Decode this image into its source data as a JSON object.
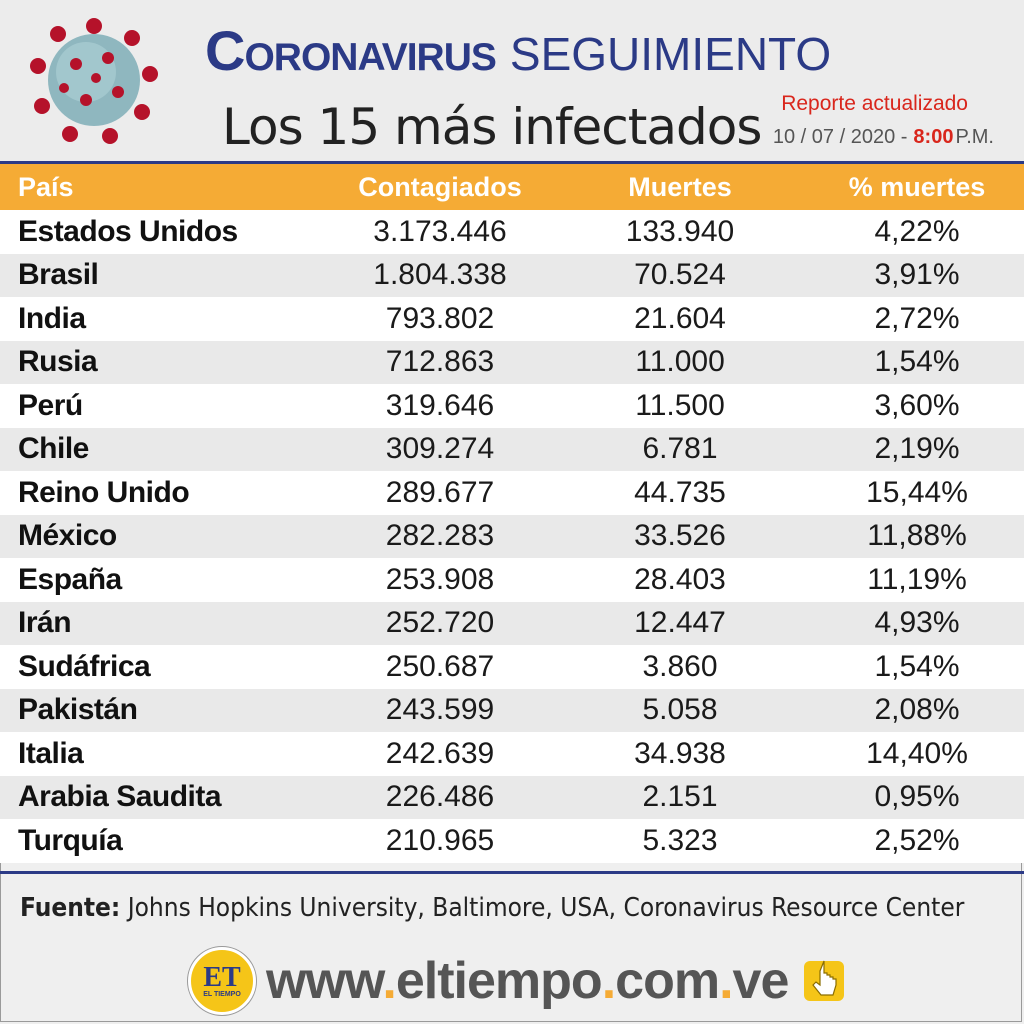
{
  "header": {
    "title_main": "Coronavirus",
    "title_second": "SEGUIMIENTO",
    "subtitle": "Los 15 más infectados",
    "report_label": "Reporte actualizado",
    "report_date": "10 / 07 / 2020 -",
    "report_time": "8:00",
    "report_ampm": "P.M."
  },
  "table": {
    "headers": [
      "País",
      "Contagiados",
      "Muertes",
      "% muertes"
    ],
    "rows": [
      [
        "Estados Unidos",
        "3.173.446",
        "133.940",
        "4,22%"
      ],
      [
        "Brasil",
        "1.804.338",
        "70.524",
        "3,91%"
      ],
      [
        "India",
        "793.802",
        "21.604",
        "2,72%"
      ],
      [
        "Rusia",
        "712.863",
        "11.000",
        "1,54%"
      ],
      [
        "Perú",
        "319.646",
        "11.500",
        "3,60%"
      ],
      [
        "Chile",
        "309.274",
        "6.781",
        "2,19%"
      ],
      [
        "Reino Unido",
        "289.677",
        "44.735",
        "15,44%"
      ],
      [
        "México",
        "282.283",
        "33.526",
        "11,88%"
      ],
      [
        "España",
        "253.908",
        "28.403",
        "11,19%"
      ],
      [
        "Irán",
        "252.720",
        "12.447",
        "4,93%"
      ],
      [
        "Sudáfrica",
        "250.687",
        "3.860",
        "1,54%"
      ],
      [
        "Pakistán",
        "243.599",
        "5.058",
        "2,08%"
      ],
      [
        "Italia",
        "242.639",
        "34.938",
        "14,40%"
      ],
      [
        "Arabia Saudita",
        "226.486",
        "2.151",
        "0,95%"
      ],
      [
        "Turquía",
        "210.965",
        "5.323",
        "2,52%"
      ]
    ]
  },
  "footer": {
    "source_label": "Fuente:",
    "source_text": "Johns Hopkins University, Baltimore, USA, Coronavirus Resource Center",
    "logo_text": "ET",
    "logo_subtext": "EL TIEMPO",
    "url_parts": [
      "www",
      ".",
      "eltiempo",
      ".",
      "com",
      ".",
      "ve"
    ],
    "click_icon": "pointer-hand-icon"
  },
  "colors": {
    "header_orange": "#f5ab35",
    "title_blue": "#2b3a86",
    "accent_red": "#d9261c"
  }
}
